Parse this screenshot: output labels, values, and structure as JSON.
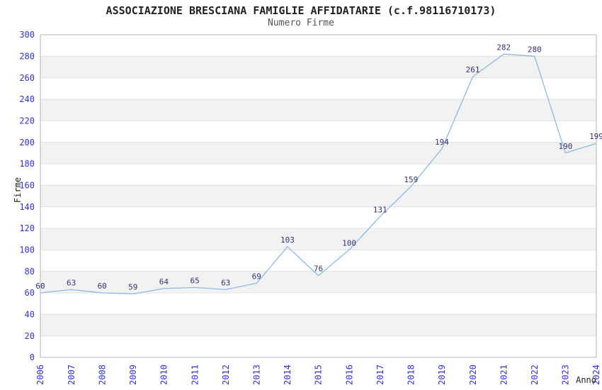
{
  "title": "ASSOCIAZIONE BRESCIANA FAMIGLIE AFFIDATARIE (c.f.98116710173)",
  "subtitle": "Numero Firme",
  "chart_data": {
    "type": "line",
    "title": "ASSOCIAZIONE BRESCIANA FAMIGLIE AFFIDATARIE (c.f.98116710173)",
    "subtitle": "Numero Firme",
    "xlabel": "Anno",
    "ylabel": "Firme",
    "x": [
      "2006",
      "2007",
      "2008",
      "2009",
      "2010",
      "2011",
      "2012",
      "2013",
      "2014",
      "2015",
      "2016",
      "2017",
      "2018",
      "2019",
      "2020",
      "2021",
      "2022",
      "2023",
      "2024"
    ],
    "values": [
      60,
      63,
      60,
      59,
      64,
      65,
      63,
      69,
      103,
      76,
      100,
      131,
      159,
      194,
      261,
      282,
      280,
      190,
      199
    ],
    "ylim": [
      0,
      300
    ],
    "ytick_step": 20,
    "x_tick_rotation": 90,
    "grid": true,
    "legend_position": "none",
    "band_fill": "alternating horizontal bands every 20 units"
  },
  "colors": {
    "line": "#8cb9e8",
    "data_label": "#333377",
    "tick_label": "#3333cc",
    "title": "#222222",
    "subtitle": "#555555",
    "band": "#f2f2f2",
    "gridline": "#e0e0e0",
    "plot_border": "#b4b4b4",
    "axis_title": "#222222",
    "background": "#ffffff"
  }
}
